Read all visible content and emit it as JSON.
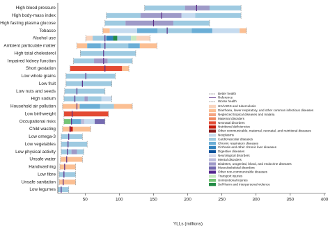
{
  "chart_data": {
    "type": "range_bar",
    "x_label": "YLLs (millions)",
    "xlim": [
      10,
      400
    ],
    "xticks": [
      50,
      100,
      150,
      200,
      250,
      300,
      350,
      400
    ],
    "categories": [
      "High blood pressure",
      "High body-mass index",
      "High fasting plasma glucose",
      "Tobacco",
      "Alcohol use",
      "Ambient particulate matter",
      "High total cholesterol",
      "Impaired kidney function",
      "Short gestation",
      "Low whole grains",
      "Low fruit",
      "Low nuts and seeds",
      "High sodium",
      "Household air pollution",
      "Low birthweight",
      "Occupational risks",
      "Child wasting",
      "Low omega-3",
      "Low vegetables",
      "Low physical activity",
      "Unsafe water",
      "Handwashing",
      "Low fibre",
      "Unsafe sanitation",
      "Low legumes"
    ],
    "better": [
      137,
      81,
      79,
      76,
      51,
      38,
      43,
      33,
      28,
      22,
      22,
      20,
      19,
      17,
      19,
      19,
      17,
      15,
      15,
      15,
      14,
      13,
      12,
      12,
      10
    ],
    "reference": [
      213,
      162,
      150,
      170,
      79,
      79,
      77,
      77,
      79,
      51,
      46,
      38,
      35,
      38,
      31,
      30,
      28,
      26,
      25,
      24,
      23,
      20,
      19,
      18,
      15
    ],
    "worse": [
      278,
      278,
      232,
      286,
      145,
      155,
      124,
      119,
      114,
      94,
      89,
      79,
      89,
      119,
      84,
      79,
      58,
      46,
      53,
      48,
      46,
      36,
      36,
      36,
      26
    ],
    "segments": [
      [
        {
          "cause": 8,
          "value": 59
        },
        {
          "cause": 14,
          "value": 36
        },
        {
          "cause": 8,
          "value": 46
        }
      ],
      [
        {
          "cause": 8,
          "value": 50
        },
        {
          "cause": 14,
          "value": 60
        },
        {
          "cause": 7,
          "value": 20
        },
        {
          "cause": 8,
          "value": 67
        }
      ],
      [
        {
          "cause": 8,
          "value": 30
        },
        {
          "cause": 14,
          "value": 70
        },
        {
          "cause": 8,
          "value": 53
        }
      ],
      [
        {
          "cause": 1,
          "value": 10
        },
        {
          "cause": 7,
          "value": 40
        },
        {
          "cause": 9,
          "value": 30
        },
        {
          "cause": 8,
          "value": 50
        },
        {
          "cause": 9,
          "value": 30
        },
        {
          "cause": 7,
          "value": 40
        },
        {
          "cause": 1,
          "value": 10
        }
      ],
      [
        {
          "cause": 0,
          "value": 10
        },
        {
          "cause": 8,
          "value": 20
        },
        {
          "cause": 10,
          "value": 10
        },
        {
          "cause": 19,
          "value": 6
        },
        {
          "cause": 8,
          "value": 20
        },
        {
          "cause": 17,
          "value": 8
        },
        {
          "cause": 0,
          "value": 20
        }
      ],
      [
        {
          "cause": 1,
          "value": 15
        },
        {
          "cause": 9,
          "value": 20
        },
        {
          "cause": 8,
          "value": 40
        },
        {
          "cause": 9,
          "value": 17
        },
        {
          "cause": 1,
          "value": 25
        }
      ],
      [
        {
          "cause": 8,
          "value": 81
        }
      ],
      [
        {
          "cause": 8,
          "value": 30
        },
        {
          "cause": 14,
          "value": 20
        },
        {
          "cause": 8,
          "value": 36
        }
      ],
      [
        {
          "cause": 4,
          "value": 76
        },
        {
          "cause": 1,
          "value": 10
        }
      ],
      [
        {
          "cause": 8,
          "value": 72
        }
      ],
      [
        {
          "cause": 8,
          "value": 67
        }
      ],
      [
        {
          "cause": 8,
          "value": 59
        }
      ],
      [
        {
          "cause": 8,
          "value": 30
        },
        {
          "cause": 14,
          "value": 5
        },
        {
          "cause": 8,
          "value": 20
        },
        {
          "cause": 7,
          "value": 15
        }
      ],
      [
        {
          "cause": 1,
          "value": 25
        },
        {
          "cause": 9,
          "value": 30
        },
        {
          "cause": 8,
          "value": 20
        },
        {
          "cause": 1,
          "value": 27
        }
      ],
      [
        {
          "cause": 4,
          "value": 65
        }
      ],
      [
        {
          "cause": 18,
          "value": 10
        },
        {
          "cause": 9,
          "value": 15
        },
        {
          "cause": 13,
          "value": 5
        },
        {
          "cause": 7,
          "value": 15
        },
        {
          "cause": 15,
          "value": 15
        }
      ],
      [
        {
          "cause": 1,
          "value": 10
        },
        {
          "cause": 5,
          "value": 5
        },
        {
          "cause": 1,
          "value": 26
        }
      ],
      [
        {
          "cause": 8,
          "value": 31
        }
      ],
      [
        {
          "cause": 8,
          "value": 38
        }
      ],
      [
        {
          "cause": 8,
          "value": 15
        },
        {
          "cause": 14,
          "value": 8
        },
        {
          "cause": 8,
          "value": 10
        }
      ],
      [
        {
          "cause": 1,
          "value": 32
        }
      ],
      [
        {
          "cause": 1,
          "value": 23
        }
      ],
      [
        {
          "cause": 8,
          "value": 24
        }
      ],
      [
        {
          "cause": 1,
          "value": 24
        }
      ],
      [
        {
          "cause": 8,
          "value": 16
        }
      ]
    ],
    "line_legend": [
      "Better health",
      "Reference",
      "Worse health"
    ],
    "reference_color": "#5b2a86",
    "bound_color": "#999999",
    "causes": [
      {
        "name": "HIV/AIDS and tuberculosis",
        "color": "#f9d4bd"
      },
      {
        "name": "Diarrhoea, lower respiratory, and other common infectious diseases",
        "color": "#fbbf93"
      },
      {
        "name": "Neglected tropical diseases and malaria",
        "color": "#f4a582"
      },
      {
        "name": "Maternal disorders",
        "color": "#ef8a62"
      },
      {
        "name": "Neonatal disorders",
        "color": "#e34a33"
      },
      {
        "name": "Nutritional deficiencies",
        "color": "#c51b0b"
      },
      {
        "name": "Other communicable, maternal, neonatal, and nutritional diseases",
        "color": "#8b1a1a"
      },
      {
        "name": "Neoplasms",
        "color": "#c6dbef"
      },
      {
        "name": "Cardiovascular diseases",
        "color": "#9ecae1"
      },
      {
        "name": "Chronic respiratory diseases",
        "color": "#6baed6"
      },
      {
        "name": "Cirrhosis and other chronic liver diseases",
        "color": "#3182bd"
      },
      {
        "name": "Digestive diseases",
        "color": "#08519c"
      },
      {
        "name": "Neurological disorders",
        "color": "#dadaeb"
      },
      {
        "name": "Mental disorders",
        "color": "#bcbddc"
      },
      {
        "name": "Diabetes, urogenital, blood, and endocrine diseases",
        "color": "#9e9ac8"
      },
      {
        "name": "Musculoskeletal disorders",
        "color": "#756bb1"
      },
      {
        "name": "Other non-communicable diseases",
        "color": "#54278f"
      },
      {
        "name": "Transport injuries",
        "color": "#c7e9c0"
      },
      {
        "name": "Unintentional injuries",
        "color": "#74c476"
      },
      {
        "name": "Self-harm and interpersonal violence",
        "color": "#238b45"
      }
    ]
  }
}
